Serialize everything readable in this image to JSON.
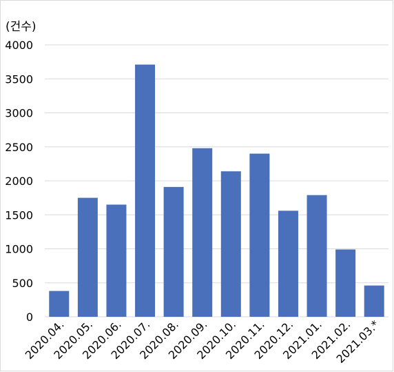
{
  "chart_data": {
    "type": "bar",
    "unit_label": "(건수)",
    "categories": [
      "2020.04.",
      "2020.05.",
      "2020.06.",
      "2020.07.",
      "2020.08.",
      "2020.09.",
      "2020.10.",
      "2020.11.",
      "2020.12.",
      "2021.01.",
      "2021.02.",
      "2021.03.*"
    ],
    "values": [
      380,
      1750,
      1650,
      3710,
      1910,
      2480,
      2140,
      2400,
      1560,
      1790,
      990,
      460
    ],
    "ylim": [
      0,
      4000
    ],
    "yticks": [
      "0",
      "500",
      "1000",
      "1500",
      "2000",
      "2500",
      "3000",
      "3500",
      "4000"
    ],
    "grid": true,
    "bar_color": "#4a6fbb",
    "grid_color": "#d9d9d9"
  }
}
